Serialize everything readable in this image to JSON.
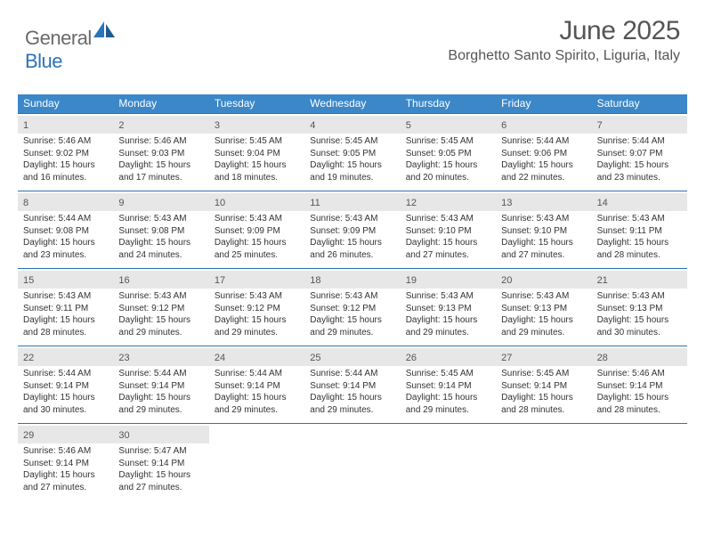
{
  "brand": {
    "part1": "General",
    "part2": "Blue"
  },
  "title": "June 2025",
  "location": "Borghetto Santo Spirito, Liguria, Italy",
  "colors": {
    "header_bg": "#3b87c8",
    "rule": "#2a74b8",
    "daynum_bg": "#e7e7e7",
    "text": "#333333",
    "logo_gray": "#6a6a6a",
    "logo_blue": "#2a74b8"
  },
  "dow": [
    "Sunday",
    "Monday",
    "Tuesday",
    "Wednesday",
    "Thursday",
    "Friday",
    "Saturday"
  ],
  "weeks": [
    [
      {
        "n": "1",
        "sr": "5:46 AM",
        "ss": "9:02 PM",
        "dl": "15 hours and 16 minutes."
      },
      {
        "n": "2",
        "sr": "5:46 AM",
        "ss": "9:03 PM",
        "dl": "15 hours and 17 minutes."
      },
      {
        "n": "3",
        "sr": "5:45 AM",
        "ss": "9:04 PM",
        "dl": "15 hours and 18 minutes."
      },
      {
        "n": "4",
        "sr": "5:45 AM",
        "ss": "9:05 PM",
        "dl": "15 hours and 19 minutes."
      },
      {
        "n": "5",
        "sr": "5:45 AM",
        "ss": "9:05 PM",
        "dl": "15 hours and 20 minutes."
      },
      {
        "n": "6",
        "sr": "5:44 AM",
        "ss": "9:06 PM",
        "dl": "15 hours and 22 minutes."
      },
      {
        "n": "7",
        "sr": "5:44 AM",
        "ss": "9:07 PM",
        "dl": "15 hours and 23 minutes."
      }
    ],
    [
      {
        "n": "8",
        "sr": "5:44 AM",
        "ss": "9:08 PM",
        "dl": "15 hours and 23 minutes."
      },
      {
        "n": "9",
        "sr": "5:43 AM",
        "ss": "9:08 PM",
        "dl": "15 hours and 24 minutes."
      },
      {
        "n": "10",
        "sr": "5:43 AM",
        "ss": "9:09 PM",
        "dl": "15 hours and 25 minutes."
      },
      {
        "n": "11",
        "sr": "5:43 AM",
        "ss": "9:09 PM",
        "dl": "15 hours and 26 minutes."
      },
      {
        "n": "12",
        "sr": "5:43 AM",
        "ss": "9:10 PM",
        "dl": "15 hours and 27 minutes."
      },
      {
        "n": "13",
        "sr": "5:43 AM",
        "ss": "9:10 PM",
        "dl": "15 hours and 27 minutes."
      },
      {
        "n": "14",
        "sr": "5:43 AM",
        "ss": "9:11 PM",
        "dl": "15 hours and 28 minutes."
      }
    ],
    [
      {
        "n": "15",
        "sr": "5:43 AM",
        "ss": "9:11 PM",
        "dl": "15 hours and 28 minutes."
      },
      {
        "n": "16",
        "sr": "5:43 AM",
        "ss": "9:12 PM",
        "dl": "15 hours and 29 minutes."
      },
      {
        "n": "17",
        "sr": "5:43 AM",
        "ss": "9:12 PM",
        "dl": "15 hours and 29 minutes."
      },
      {
        "n": "18",
        "sr": "5:43 AM",
        "ss": "9:12 PM",
        "dl": "15 hours and 29 minutes."
      },
      {
        "n": "19",
        "sr": "5:43 AM",
        "ss": "9:13 PM",
        "dl": "15 hours and 29 minutes."
      },
      {
        "n": "20",
        "sr": "5:43 AM",
        "ss": "9:13 PM",
        "dl": "15 hours and 29 minutes."
      },
      {
        "n": "21",
        "sr": "5:43 AM",
        "ss": "9:13 PM",
        "dl": "15 hours and 30 minutes."
      }
    ],
    [
      {
        "n": "22",
        "sr": "5:44 AM",
        "ss": "9:14 PM",
        "dl": "15 hours and 30 minutes."
      },
      {
        "n": "23",
        "sr": "5:44 AM",
        "ss": "9:14 PM",
        "dl": "15 hours and 29 minutes."
      },
      {
        "n": "24",
        "sr": "5:44 AM",
        "ss": "9:14 PM",
        "dl": "15 hours and 29 minutes."
      },
      {
        "n": "25",
        "sr": "5:44 AM",
        "ss": "9:14 PM",
        "dl": "15 hours and 29 minutes."
      },
      {
        "n": "26",
        "sr": "5:45 AM",
        "ss": "9:14 PM",
        "dl": "15 hours and 29 minutes."
      },
      {
        "n": "27",
        "sr": "5:45 AM",
        "ss": "9:14 PM",
        "dl": "15 hours and 28 minutes."
      },
      {
        "n": "28",
        "sr": "5:46 AM",
        "ss": "9:14 PM",
        "dl": "15 hours and 28 minutes."
      }
    ],
    [
      {
        "n": "29",
        "sr": "5:46 AM",
        "ss": "9:14 PM",
        "dl": "15 hours and 27 minutes."
      },
      {
        "n": "30",
        "sr": "5:47 AM",
        "ss": "9:14 PM",
        "dl": "15 hours and 27 minutes."
      },
      null,
      null,
      null,
      null,
      null
    ]
  ],
  "labels": {
    "sunrise": "Sunrise:",
    "sunset": "Sunset:",
    "daylight": "Daylight:"
  }
}
